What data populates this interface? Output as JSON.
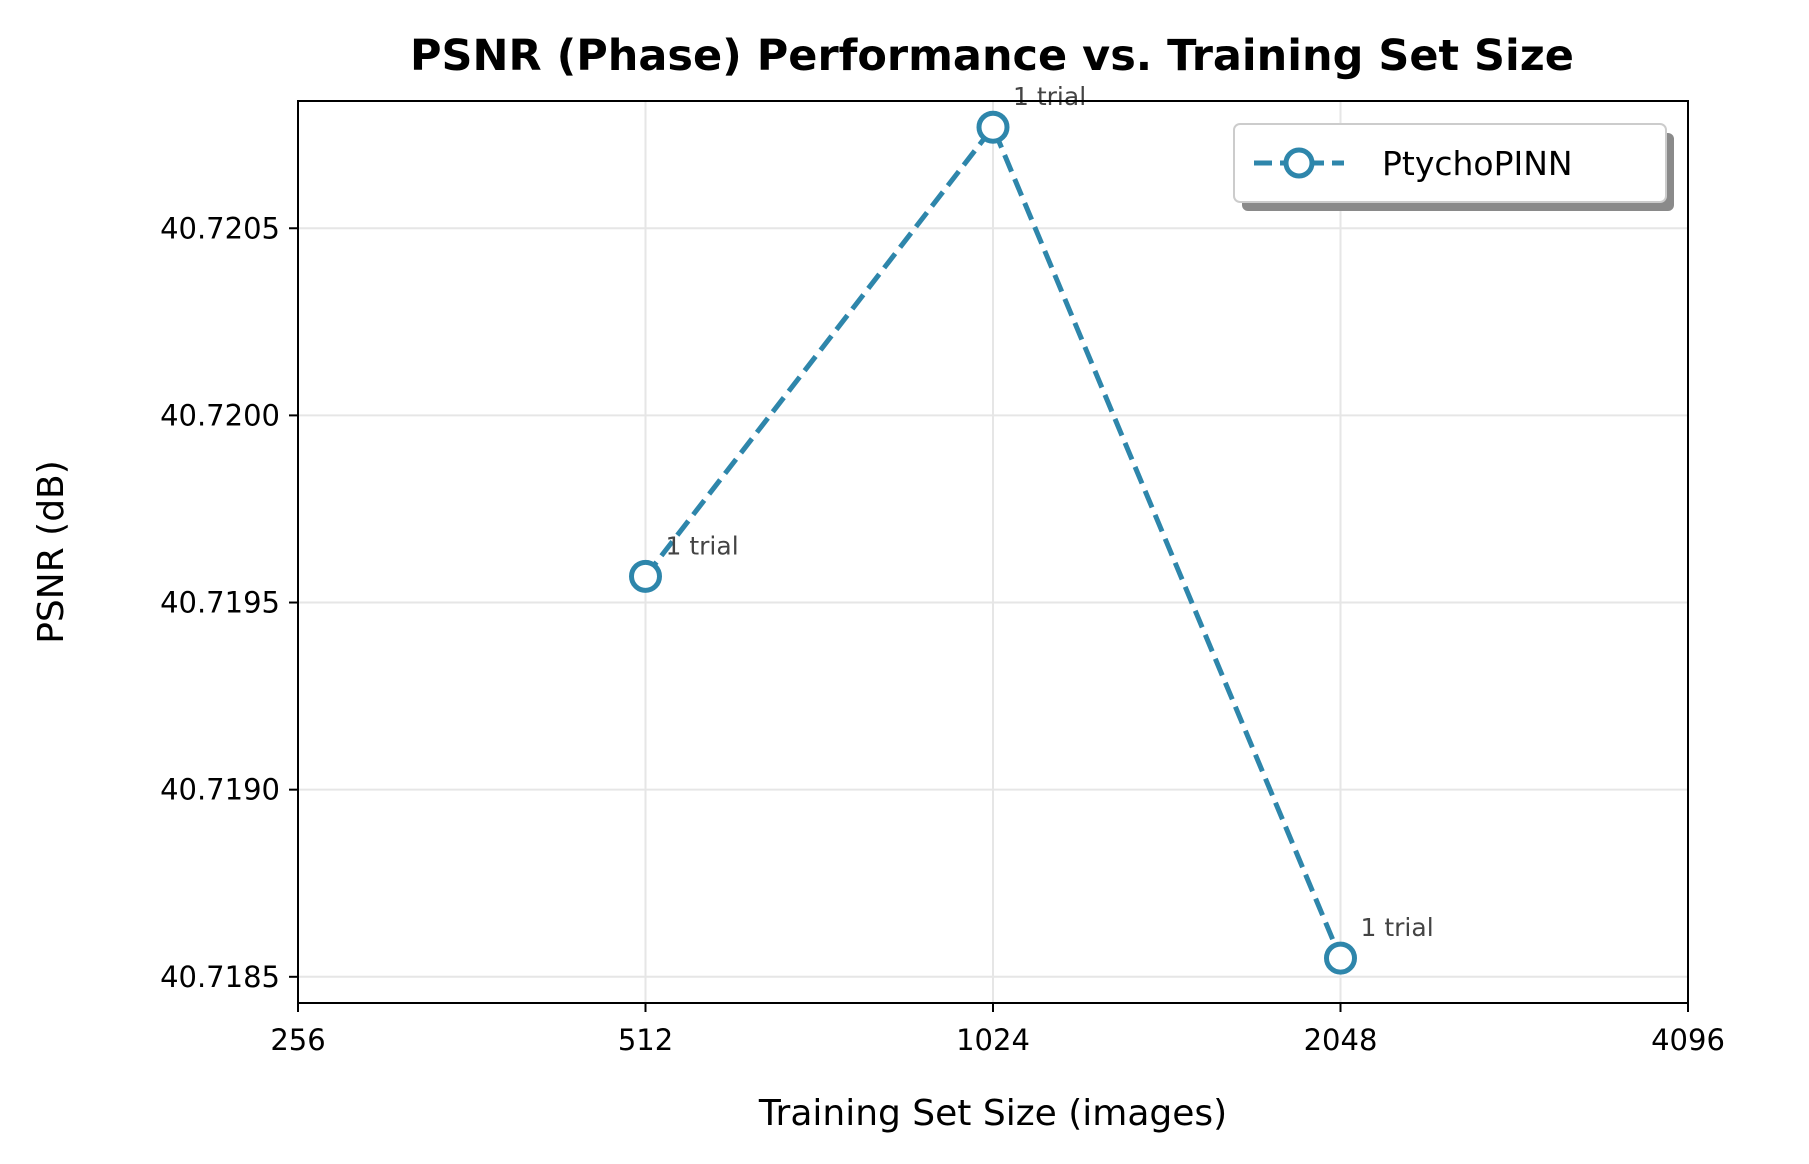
{
  "chart_data": {
    "type": "line",
    "title": "PSNR (Phase) Performance vs. Training Set Size",
    "xlabel": "Training Set Size (images)",
    "ylabel": "PSNR (dB)",
    "x_scale": "log2",
    "xlim": [
      256,
      4096
    ],
    "ylim": [
      40.71843,
      40.72084
    ],
    "x_ticks": [
      256,
      512,
      1024,
      2048,
      4096
    ],
    "x_tick_labels": [
      "256",
      "512",
      "1024",
      "2048",
      "4096"
    ],
    "y_ticks": [
      40.7185,
      40.719,
      40.7195,
      40.72,
      40.7205
    ],
    "y_tick_labels": [
      "40.7185",
      "40.7190",
      "40.7195",
      "40.7200",
      "40.7205"
    ],
    "grid": true,
    "legend_position": "top-right",
    "series": [
      {
        "name": "PtychoPINN",
        "color": "#2e86ab",
        "line_style": "dashed",
        "marker": "open-circle",
        "x": [
          512,
          1024,
          2048
        ],
        "y": [
          40.71957,
          40.72077,
          40.71855
        ],
        "annotations": [
          "1 trial",
          "1 trial",
          "1 trial"
        ]
      }
    ]
  }
}
